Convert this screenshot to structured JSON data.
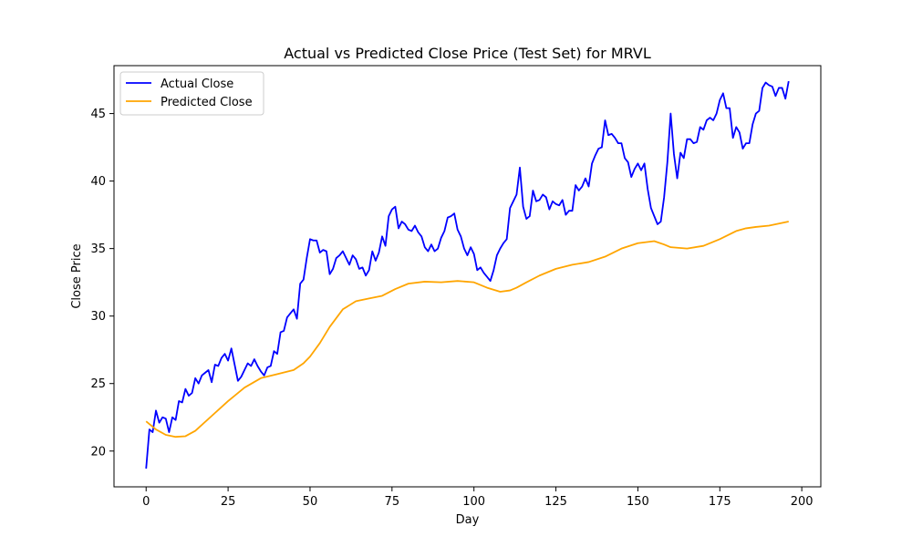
{
  "chart_data": {
    "type": "line",
    "title": "Actual vs Predicted Close Price (Test Set) for MRVL",
    "xlabel": "Day",
    "ylabel": "Close Price",
    "xlim": [
      -9.8,
      205.8
    ],
    "ylim": [
      17.35,
      48.55
    ],
    "x_ticks": [
      0,
      25,
      50,
      75,
      100,
      125,
      150,
      175,
      200
    ],
    "y_ticks": [
      20,
      25,
      30,
      35,
      40,
      45
    ],
    "grid": false,
    "legend_position": "top-left",
    "series": [
      {
        "name": "Actual Close",
        "color": "#0000ff",
        "x": [
          0,
          1,
          2,
          3,
          4,
          5,
          6,
          7,
          8,
          9,
          10,
          11,
          12,
          13,
          14,
          15,
          16,
          17,
          18,
          19,
          20,
          21,
          22,
          23,
          24,
          25,
          26,
          27,
          28,
          29,
          30,
          31,
          32,
          33,
          34,
          35,
          36,
          37,
          38,
          39,
          40,
          41,
          42,
          43,
          44,
          45,
          46,
          47,
          48,
          49,
          50,
          51,
          52,
          53,
          54,
          55,
          56,
          57,
          58,
          59,
          60,
          61,
          62,
          63,
          64,
          65,
          66,
          67,
          68,
          69,
          70,
          71,
          72,
          73,
          74,
          75,
          76,
          77,
          78,
          79,
          80,
          81,
          82,
          83,
          84,
          85,
          86,
          87,
          88,
          89,
          90,
          91,
          92,
          93,
          94,
          95,
          96,
          97,
          98,
          99,
          100,
          101,
          102,
          103,
          104,
          105,
          106,
          107,
          108,
          109,
          110,
          111,
          112,
          113,
          114,
          115,
          116,
          117,
          118,
          119,
          120,
          121,
          122,
          123,
          124,
          125,
          126,
          127,
          128,
          129,
          130,
          131,
          132,
          133,
          134,
          135,
          136,
          137,
          138,
          139,
          140,
          141,
          142,
          143,
          144,
          145,
          146,
          147,
          148,
          149,
          150,
          151,
          152,
          153,
          154,
          155,
          156,
          157,
          158,
          159,
          160,
          161,
          162,
          163,
          164,
          165,
          166,
          167,
          168,
          169,
          170,
          171,
          172,
          173,
          174,
          175,
          176,
          177,
          178,
          179,
          180,
          181,
          182,
          183,
          184,
          185,
          186,
          187,
          188,
          189,
          190,
          191,
          192,
          193,
          194,
          195,
          196
        ],
        "values": [
          18.7,
          21.6,
          21.4,
          23.0,
          22.1,
          22.5,
          22.4,
          21.4,
          22.5,
          22.3,
          23.7,
          23.6,
          24.6,
          24.1,
          24.3,
          25.4,
          25.0,
          25.6,
          25.8,
          26.0,
          25.1,
          26.4,
          26.3,
          26.9,
          27.2,
          26.7,
          27.6,
          26.4,
          25.2,
          25.5,
          26.0,
          26.5,
          26.3,
          26.8,
          26.3,
          25.9,
          25.6,
          26.2,
          26.3,
          27.4,
          27.2,
          28.8,
          28.9,
          29.9,
          30.2,
          30.5,
          29.8,
          32.4,
          32.7,
          34.3,
          35.7,
          35.6,
          35.6,
          34.7,
          34.9,
          34.8,
          33.1,
          33.5,
          34.3,
          34.5,
          34.8,
          34.3,
          33.8,
          34.5,
          34.2,
          33.5,
          33.6,
          33.0,
          33.4,
          34.8,
          34.1,
          34.7,
          35.9,
          35.2,
          37.4,
          37.9,
          38.1,
          36.5,
          37.0,
          36.8,
          36.4,
          36.3,
          36.7,
          36.2,
          35.9,
          35.1,
          34.8,
          35.3,
          34.8,
          35.0,
          35.8,
          36.3,
          37.3,
          37.4,
          37.6,
          36.4,
          35.9,
          35.0,
          34.5,
          35.1,
          34.6,
          33.4,
          33.6,
          33.2,
          32.9,
          32.6,
          33.4,
          34.5,
          35.0,
          35.4,
          35.7,
          38.0,
          38.5,
          39.0,
          41.0,
          38.1,
          37.2,
          37.4,
          39.3,
          38.5,
          38.6,
          39.0,
          38.8,
          37.9,
          38.5,
          38.3,
          38.2,
          38.6,
          37.5,
          37.8,
          37.8,
          39.7,
          39.3,
          39.6,
          40.2,
          39.6,
          41.3,
          41.9,
          42.4,
          42.5,
          44.5,
          43.4,
          43.5,
          43.2,
          42.8,
          42.8,
          41.7,
          41.4,
          40.3,
          40.9,
          41.3,
          40.8,
          41.3,
          39.4,
          38.0,
          37.4,
          36.8,
          37.0,
          38.8,
          41.4,
          45.0,
          42.0,
          40.2,
          42.1,
          41.7,
          43.1,
          43.1,
          42.8,
          42.9,
          44.0,
          43.8,
          44.5,
          44.7,
          44.5,
          45.0,
          46.0,
          46.5,
          45.4,
          45.4,
          43.2,
          44.0,
          43.6,
          42.4,
          42.8,
          42.8,
          44.2,
          45.0,
          45.2,
          46.9,
          47.3,
          47.1,
          47.0,
          46.3,
          46.9,
          46.9,
          46.1,
          47.4
        ]
      },
      {
        "name": "Predicted Close",
        "color": "#ffa500",
        "x": [
          0,
          3,
          6,
          9,
          12,
          15,
          20,
          25,
          30,
          35,
          40,
          45,
          48,
          50,
          53,
          56,
          60,
          64,
          68,
          72,
          76,
          80,
          85,
          90,
          95,
          100,
          104,
          108,
          111,
          113,
          116,
          120,
          125,
          130,
          135,
          140,
          145,
          150,
          155,
          158,
          160,
          165,
          170,
          175,
          180,
          183,
          186,
          190,
          193,
          196
        ],
        "values": [
          22.2,
          21.6,
          21.2,
          21.05,
          21.1,
          21.5,
          22.6,
          23.7,
          24.7,
          25.4,
          25.7,
          26.0,
          26.5,
          27.0,
          28.0,
          29.2,
          30.5,
          31.1,
          31.3,
          31.5,
          32.0,
          32.4,
          32.55,
          32.5,
          32.6,
          32.5,
          32.1,
          31.8,
          31.9,
          32.1,
          32.5,
          33.0,
          33.5,
          33.8,
          34.0,
          34.4,
          35.0,
          35.4,
          35.55,
          35.3,
          35.1,
          35.0,
          35.2,
          35.7,
          36.3,
          36.5,
          36.6,
          36.7,
          36.85,
          37.0
        ]
      }
    ]
  }
}
